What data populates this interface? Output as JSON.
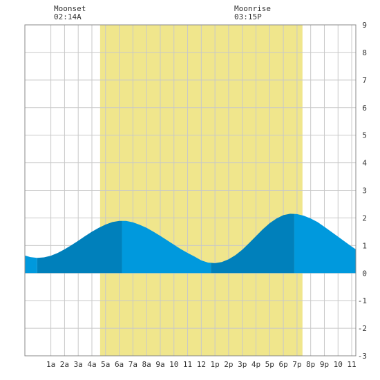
{
  "annotations": {
    "moonset": {
      "label": "Moonset",
      "time": "02:14A",
      "hour": 2.23
    },
    "moonrise": {
      "label": "Moonrise",
      "time": "03:15P",
      "hour": 15.25
    }
  },
  "colors": {
    "daylight": "#f0e68c",
    "tide_light": "#0099dd",
    "tide_dark": "#0080bb",
    "grid": "#c8c8c8",
    "frame": "#888888",
    "text": "#333333"
  },
  "chart_data": {
    "type": "area",
    "title": "",
    "xlabel": "",
    "ylabel": "",
    "xlim": [
      -0.9,
      23.3
    ],
    "ylim": [
      -3,
      9
    ],
    "grid": true,
    "x_ticks": [
      {
        "h": 1,
        "label": "1a"
      },
      {
        "h": 2,
        "label": "2a"
      },
      {
        "h": 3,
        "label": "3a"
      },
      {
        "h": 4,
        "label": "4a"
      },
      {
        "h": 5,
        "label": "5a"
      },
      {
        "h": 6,
        "label": "6a"
      },
      {
        "h": 7,
        "label": "7a"
      },
      {
        "h": 8,
        "label": "8a"
      },
      {
        "h": 9,
        "label": "9a"
      },
      {
        "h": 10,
        "label": "10"
      },
      {
        "h": 11,
        "label": "11"
      },
      {
        "h": 12,
        "label": "12"
      },
      {
        "h": 13,
        "label": "1p"
      },
      {
        "h": 14,
        "label": "2p"
      },
      {
        "h": 15,
        "label": "3p"
      },
      {
        "h": 16,
        "label": "4p"
      },
      {
        "h": 17,
        "label": "5p"
      },
      {
        "h": 18,
        "label": "6p"
      },
      {
        "h": 19,
        "label": "7p"
      },
      {
        "h": 20,
        "label": "8p"
      },
      {
        "h": 21,
        "label": "9p"
      },
      {
        "h": 22,
        "label": "10"
      },
      {
        "h": 23,
        "label": "11"
      }
    ],
    "y_ticks": [
      -3,
      -2,
      -1,
      0,
      1,
      2,
      3,
      4,
      5,
      6,
      7,
      8,
      9
    ],
    "daylight": [
      4.6,
      19.4
    ],
    "extremes": [
      {
        "type": "low",
        "h": 0.0,
        "v": 0.55
      },
      {
        "type": "high",
        "h": 6.2,
        "v": 1.9
      },
      {
        "type": "low",
        "h": 12.7,
        "v": 0.35
      },
      {
        "type": "high",
        "h": 18.8,
        "v": 2.15
      }
    ],
    "series": [
      {
        "x": [
          -0.9,
          -0.5,
          0,
          0.5,
          1,
          1.5,
          2,
          2.5,
          3,
          3.5,
          4,
          4.5,
          5,
          5.5,
          6,
          6.5,
          7,
          7.5,
          8,
          8.5,
          9,
          9.5,
          10,
          10.5,
          11,
          11.5,
          12,
          12.5,
          13,
          13.5,
          14,
          14.5,
          15,
          15.5,
          16,
          16.5,
          17,
          17.5,
          18,
          18.5,
          19,
          19.5,
          20,
          20.5,
          21,
          21.5,
          22,
          22.5,
          23,
          23.3
        ],
        "values": [
          0.64,
          0.58,
          0.55,
          0.57,
          0.63,
          0.73,
          0.86,
          1.01,
          1.17,
          1.34,
          1.5,
          1.64,
          1.76,
          1.85,
          1.89,
          1.89,
          1.84,
          1.75,
          1.64,
          1.5,
          1.35,
          1.19,
          1.03,
          0.87,
          0.73,
          0.6,
          0.46,
          0.38,
          0.36,
          0.4,
          0.5,
          0.65,
          0.85,
          1.09,
          1.34,
          1.59,
          1.81,
          1.98,
          2.1,
          2.15,
          2.14,
          2.08,
          1.98,
          1.85,
          1.68,
          1.5,
          1.32,
          1.14,
          0.96,
          0.86
        ]
      }
    ]
  }
}
